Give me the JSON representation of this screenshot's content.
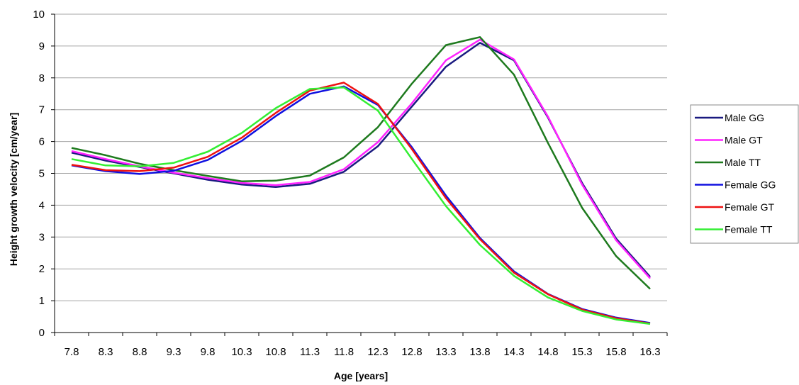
{
  "chart_data": {
    "type": "line",
    "xlabel": "Age [years]",
    "ylabel": "Height growth velocity [cm/year]",
    "categories": [
      "7.8",
      "8.3",
      "8.8",
      "9.3",
      "9.8",
      "10.3",
      "10.8",
      "11.3",
      "11.8",
      "12.3",
      "12.8",
      "13.3",
      "13.8",
      "14.3",
      "14.8",
      "15.3",
      "15.8",
      "16.3"
    ],
    "ylim": [
      0,
      10
    ],
    "yticks": [
      "0",
      "1",
      "2",
      "3",
      "4",
      "5",
      "6",
      "7",
      "8",
      "9",
      "10"
    ],
    "grid": "horizontal",
    "legend_position": "right",
    "series": [
      {
        "name": "Male GG",
        "color": "#1a1a80",
        "values": [
          5.65,
          5.4,
          5.2,
          5.0,
          4.8,
          4.65,
          4.57,
          4.67,
          5.05,
          5.85,
          7.1,
          8.35,
          9.1,
          8.55,
          6.75,
          4.7,
          2.95,
          1.75
        ]
      },
      {
        "name": "Male GT",
        "color": "#ff22ff",
        "values": [
          5.7,
          5.45,
          5.22,
          5.02,
          4.85,
          4.7,
          4.63,
          4.73,
          5.13,
          5.98,
          7.2,
          8.55,
          9.2,
          8.58,
          6.78,
          4.65,
          2.9,
          1.7
        ]
      },
      {
        "name": "Male TT",
        "color": "#1e7a1e",
        "values": [
          5.8,
          5.57,
          5.3,
          5.1,
          4.92,
          4.75,
          4.77,
          4.93,
          5.5,
          6.45,
          7.82,
          9.03,
          9.28,
          8.1,
          5.95,
          3.92,
          2.4,
          1.37
        ]
      },
      {
        "name": "Female GG",
        "color": "#1010e0",
        "values": [
          5.25,
          5.07,
          4.98,
          5.08,
          5.42,
          6.02,
          6.8,
          7.5,
          7.73,
          7.15,
          5.82,
          4.3,
          2.97,
          1.92,
          1.21,
          0.74,
          0.47,
          0.3
        ]
      },
      {
        "name": "Female GT",
        "color": "#ee1111",
        "values": [
          5.27,
          5.1,
          5.07,
          5.18,
          5.52,
          6.12,
          6.9,
          7.6,
          7.85,
          7.18,
          5.76,
          4.22,
          2.93,
          1.88,
          1.2,
          0.72,
          0.45,
          0.28
        ]
      },
      {
        "name": "Female TT",
        "color": "#33ee33",
        "values": [
          5.45,
          5.25,
          5.22,
          5.33,
          5.68,
          6.27,
          7.05,
          7.65,
          7.7,
          6.97,
          5.45,
          3.97,
          2.75,
          1.78,
          1.1,
          0.68,
          0.41,
          0.27
        ]
      }
    ]
  }
}
